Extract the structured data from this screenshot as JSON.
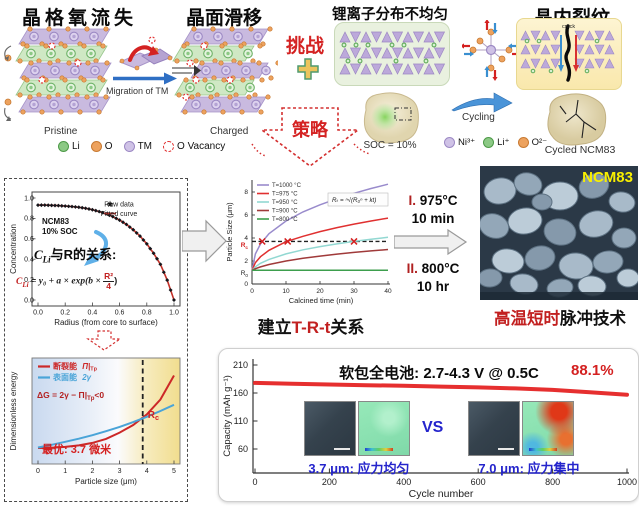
{
  "top": {
    "titles": {
      "lattice": "晶格氧流失",
      "slip": "晶面滑移",
      "li_dist": "锂离子分布不均匀",
      "crack": "晶内裂纹"
    },
    "labels": {
      "pristine": "Pristine",
      "charged": "Charged",
      "migration": "Migration of TM",
      "challenge": "挑战",
      "plus": "+",
      "strategy": "策略",
      "soc": "SOC = 10%",
      "cycling": "Cycling",
      "crack_word": "crack",
      "cycled": "Cycled NCM83"
    },
    "legend_atoms": [
      {
        "label": "Li",
        "color": "#5cb85c"
      },
      {
        "label": "O",
        "color": "#e2944e"
      },
      {
        "label": "TM",
        "color": "#c3b4e0"
      },
      {
        "label": "O Vacancy",
        "color": "#e03030"
      }
    ],
    "legend_ions": [
      {
        "label": "Ni³⁺",
        "color": "#b3a1d6"
      },
      {
        "label": "Li⁺",
        "color": "#5cb85c"
      },
      {
        "label": "O²⁻",
        "color": "#e2944e"
      }
    ]
  },
  "process": {
    "step1_num": "I.",
    "step1_temp": "975°C",
    "step1_time": "10 min",
    "step2_num": "II.",
    "step2_temp": "800°C",
    "step2_time": "10 hr"
  },
  "sem": {
    "tag": "NCM83",
    "caption_red": "高温短时",
    "caption_black": "脉冲技术"
  },
  "trt_caption": {
    "pre": "建立",
    "mid": "T-R-t",
    "post": "关系"
  },
  "chart_data": [
    {
      "id": "li_concentration",
      "type": "scatter+line",
      "xlabel": "Radius (from core to surface)",
      "ylabel": "Concentration",
      "xticks": [
        0.0,
        0.2,
        0.4,
        0.6,
        0.8,
        1.0
      ],
      "yticks": [
        0.0,
        0.2,
        0.4,
        0.6,
        0.8,
        1.0
      ],
      "x": [
        0,
        0.05,
        0.1,
        0.15,
        0.2,
        0.25,
        0.3,
        0.35,
        0.4,
        0.45,
        0.5,
        0.55,
        0.6,
        0.65,
        0.7,
        0.75,
        0.8,
        0.85,
        0.9,
        0.95,
        1.0
      ],
      "y": [
        0.93,
        0.93,
        0.928,
        0.925,
        0.921,
        0.916,
        0.909,
        0.899,
        0.885,
        0.867,
        0.845,
        0.817,
        0.783,
        0.741,
        0.689,
        0.626,
        0.55,
        0.458,
        0.35,
        0.195,
        0.0
      ],
      "line_color": "#c23028",
      "legend": [
        {
          "label": "Raw data",
          "marker": "star"
        },
        {
          "label": "Fitted curve",
          "marker": "line",
          "color": "#c23028"
        }
      ],
      "sample": "NCM83",
      "soc": "10% SOC",
      "relation": {
        "sym": "C",
        "sub": "Li",
        "rest": "与R的关系:"
      },
      "formula": {
        "sym": "C",
        "sub": "Li",
        "mid": " = y₀ + a × exp(b × ",
        "num": "R²",
        "den": "4",
        "close": ")"
      }
    },
    {
      "id": "t_r_t",
      "type": "line",
      "xlabel": "Calcined time (min)",
      "ylabel": "Particle Size (μm)",
      "xticks": [
        0,
        10,
        20,
        30,
        40
      ],
      "yticks": [
        0,
        2,
        4,
        6,
        8
      ],
      "x": [
        0,
        1,
        2.5,
        5,
        10,
        15,
        20,
        25,
        30,
        35,
        40
      ],
      "series": [
        {
          "name": "T=1000 °C",
          "color": "#998bcc",
          "values": [
            1.2,
            2.62,
            3.49,
            4.37,
            5.48,
            6.27,
            6.89,
            7.42,
            7.89,
            8.3,
            8.68
          ]
        },
        {
          "name": "T=975 °C",
          "color": "#e03030",
          "values": [
            1.2,
            1.86,
            2.37,
            2.93,
            3.68,
            4.15,
            4.56,
            4.9,
            5.21,
            5.48,
            5.73
          ]
        },
        {
          "name": "T=950 °C",
          "color": "#92d8d2",
          "values": [
            1.2,
            1.5,
            1.8,
            2.14,
            2.62,
            2.97,
            3.25,
            3.49,
            3.7,
            3.89,
            4.06
          ]
        },
        {
          "name": "T=900 °C",
          "color": "#a03a3a",
          "values": [
            1.2,
            1.33,
            1.49,
            1.7,
            2.0,
            2.24,
            2.43,
            2.6,
            2.75,
            2.88,
            3.0
          ]
        },
        {
          "name": "T=800 °C",
          "color": "#3d9e4d",
          "values": [
            1.2,
            1.2,
            1.2,
            1.2,
            1.2,
            1.2,
            1.2,
            1.2,
            1.2,
            1.2,
            1.2
          ]
        }
      ],
      "rc_value": 3.7,
      "rc_main": "R",
      "rc_sub": "c",
      "r0_value": 1.2,
      "r0_main": "R",
      "r0_sub": "0",
      "cross_markers": [
        [
          3,
          3.7
        ],
        [
          10.5,
          3.7
        ],
        [
          30,
          3.7
        ]
      ],
      "formula": "Rₜ = ⁿ√(R₀ⁿ + kt)"
    },
    {
      "id": "energy",
      "type": "line",
      "xlabel": "Particle size (μm)",
      "ylabel": "Dimensionless energy",
      "xticks": [
        0,
        1,
        2,
        3,
        4,
        5
      ],
      "x": [
        0,
        0.5,
        1,
        1.5,
        2,
        2.5,
        3,
        3.5,
        4,
        4.5,
        5
      ],
      "series": [
        {
          "name": "断裂能",
          "sym_main": "Π|",
          "sym_sub": "Tp",
          "color": "#cc2828",
          "values": [
            0.125,
            0.128,
            0.136,
            0.152,
            0.178,
            0.22,
            0.285,
            0.365,
            0.475,
            0.63,
            0.88
          ]
        },
        {
          "name": "表面能",
          "sym_main": "2γ",
          "sym_sub": "",
          "color": "#4aa4d8",
          "values": [
            0.13,
            0.158,
            0.19,
            0.222,
            0.258,
            0.3,
            0.345,
            0.395,
            0.45,
            0.51,
            0.575
          ]
        }
      ],
      "rc_x": 3.85,
      "rc_main": "R",
      "rc_sub": "c",
      "formula": {
        "main": "ΔG = 2γ − Π|",
        "sub": "Tp",
        "tail": "<0"
      },
      "optimal": "最优: 3.7 微米"
    },
    {
      "id": "capacity",
      "type": "line",
      "xlabel": "Cycle number",
      "ylabel": "Capacity (mAh g⁻¹)",
      "xticks": [
        0,
        200,
        400,
        600,
        800,
        1000
      ],
      "yticks": [
        60,
        110,
        160,
        210
      ],
      "ylim": [
        35,
        230
      ],
      "x": [
        0,
        100,
        200,
        300,
        400,
        500,
        600,
        700,
        800,
        900,
        1000
      ],
      "values": [
        178,
        176.5,
        175.2,
        174,
        172.8,
        171.5,
        170,
        168.2,
        165.5,
        161.5,
        157
      ],
      "color": "#e62f2f",
      "title": "软包全电池: 2.7-4.3 V @ 0.5C",
      "retention": "88.1%",
      "vs": "VS",
      "caption_left": "3.7 μm: 应力均匀",
      "caption_right": "7.0 μm: 应力集中"
    }
  ]
}
